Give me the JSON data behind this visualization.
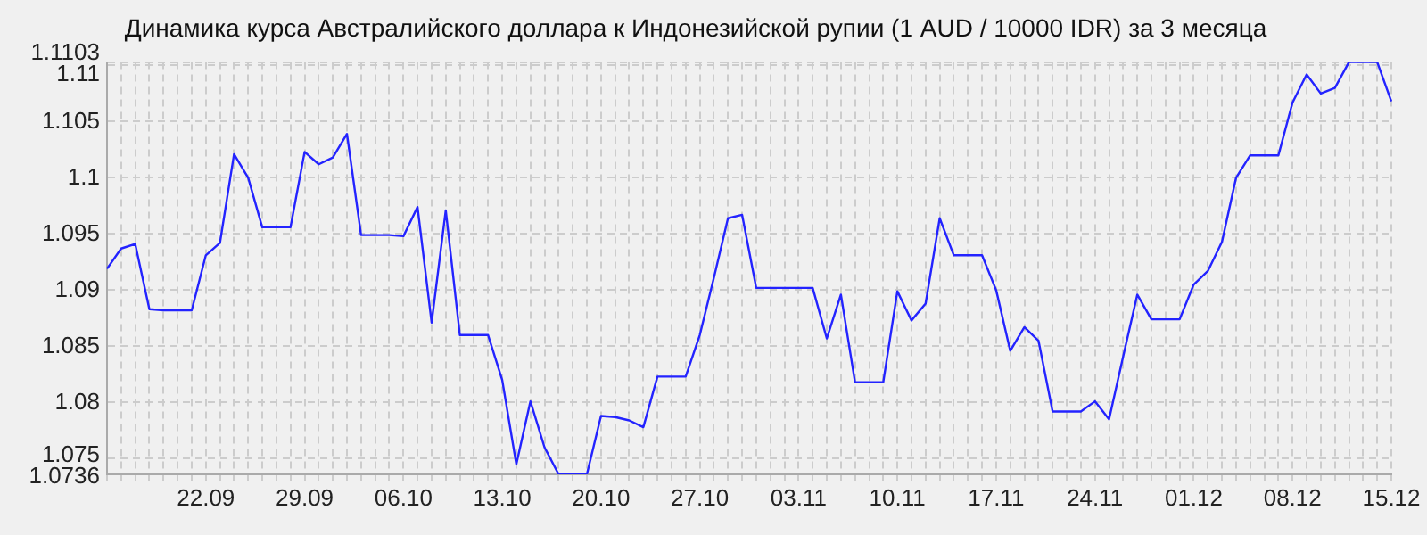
{
  "chart_data": {
    "type": "line",
    "title": "Динамика курса Австралийского доллара к Индонезийской рупии (1 AUD / 10000 IDR) за 3 месяца",
    "categories": [
      null,
      null,
      null,
      null,
      null,
      null,
      null,
      "22.09",
      null,
      null,
      null,
      null,
      null,
      null,
      "29.09",
      null,
      null,
      null,
      null,
      null,
      null,
      "06.10",
      null,
      null,
      null,
      null,
      null,
      null,
      "13.10",
      null,
      null,
      null,
      null,
      null,
      null,
      "20.10",
      null,
      null,
      null,
      null,
      null,
      null,
      "27.10",
      null,
      null,
      null,
      null,
      null,
      null,
      "03.11",
      null,
      null,
      null,
      null,
      null,
      null,
      "10.11",
      null,
      null,
      null,
      null,
      null,
      null,
      "17.11",
      null,
      null,
      null,
      null,
      null,
      null,
      "24.11",
      null,
      null,
      null,
      null,
      null,
      null,
      "01.12",
      null,
      null,
      null,
      null,
      null,
      null,
      "08.12",
      null,
      null,
      null,
      null,
      null,
      null,
      "15.12"
    ],
    "series": [
      {
        "color": "#2323ff",
        "values": [
          1.0919,
          1.0937,
          1.0941,
          1.0883,
          1.0882,
          1.0882,
          1.0882,
          1.0931,
          1.0942,
          1.1021,
          1.1,
          1.0956,
          1.0956,
          1.0956,
          1.1023,
          1.1012,
          1.1018,
          1.1039,
          1.0949,
          1.0949,
          1.0949,
          1.0948,
          1.0974,
          1.0871,
          1.0971,
          1.086,
          1.086,
          1.086,
          1.082,
          1.0745,
          1.0801,
          1.076,
          1.0736,
          1.0736,
          1.0736,
          1.0788,
          1.0787,
          1.0784,
          1.0778,
          1.0823,
          1.0823,
          1.0823,
          1.086,
          1.0911,
          1.0964,
          1.0967,
          1.0902,
          1.0902,
          1.0902,
          1.0902,
          1.0902,
          1.0857,
          1.0896,
          1.0818,
          1.0818,
          1.0818,
          1.0899,
          1.0873,
          1.0888,
          1.0964,
          1.0931,
          1.0931,
          1.0931,
          1.09,
          1.0846,
          1.0867,
          1.0855,
          1.0792,
          1.0792,
          1.0792,
          1.0801,
          1.0785,
          1.0841,
          1.0896,
          1.0874,
          1.0874,
          1.0874,
          1.0905,
          1.0917,
          1.0943,
          1.1,
          1.102,
          1.102,
          1.102,
          1.1067,
          1.1092,
          1.1075,
          1.108,
          1.1103,
          1.1103,
          1.1103,
          1.1068
        ]
      }
    ],
    "ylim": [
      1.0736,
      1.1103
    ],
    "yticks": [
      1.0736,
      1.075,
      1.08,
      1.085,
      1.09,
      1.095,
      1.1,
      1.105,
      1.11,
      1.1103
    ],
    "grid": true,
    "legend": false,
    "marker": "none",
    "line_style": "solid"
  }
}
